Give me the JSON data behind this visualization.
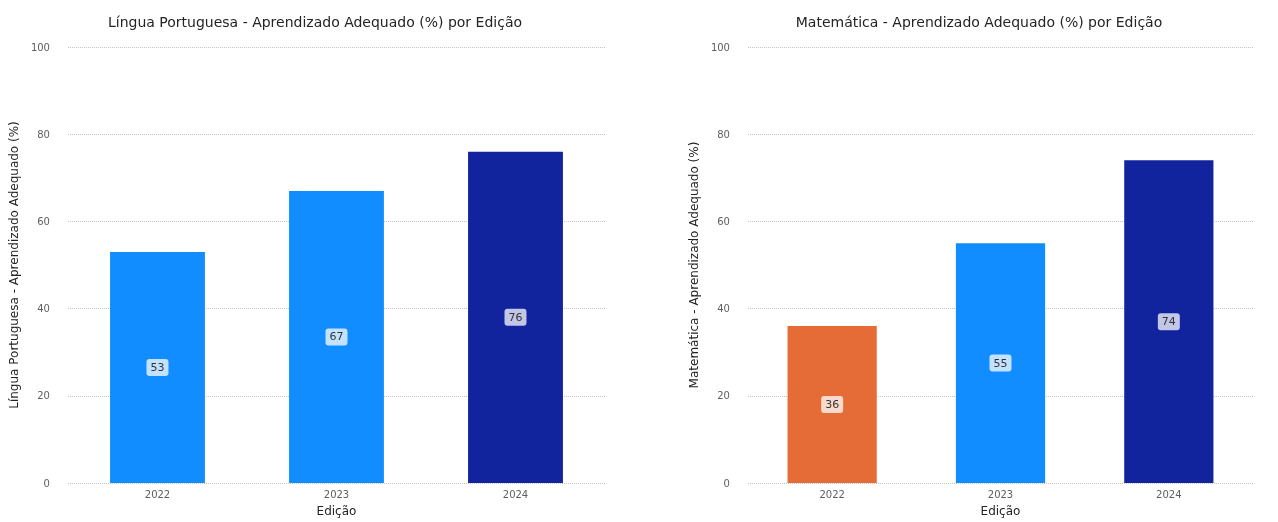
{
  "chart_data": [
    {
      "type": "bar",
      "title": "Língua Portuguesa - Aprendizado Adequado (%) por Edição",
      "xlabel": "Edição",
      "ylabel": "Língua Portuguesa - Aprendizado Adequado (%)",
      "categories": [
        "2022",
        "2023",
        "2024"
      ],
      "values": [
        53,
        67,
        76
      ],
      "colors": [
        "#118dff",
        "#118dff",
        "#12239e"
      ],
      "ylim": [
        0,
        100
      ],
      "yticks": [
        0,
        20,
        40,
        60,
        80,
        100
      ],
      "grid": "y",
      "data_labels": true
    },
    {
      "type": "bar",
      "title": "Matemática - Aprendizado Adequado (%) por Edição",
      "xlabel": "Edição",
      "ylabel": "Matemática - Aprendizado Adequado (%)",
      "categories": [
        "2022",
        "2023",
        "2024"
      ],
      "values": [
        36,
        55,
        74
      ],
      "colors": [
        "#e66c37",
        "#118dff",
        "#12239e"
      ],
      "ylim": [
        0,
        100
      ],
      "yticks": [
        0,
        20,
        40,
        60,
        80,
        100
      ],
      "grid": "y",
      "data_labels": true
    }
  ]
}
